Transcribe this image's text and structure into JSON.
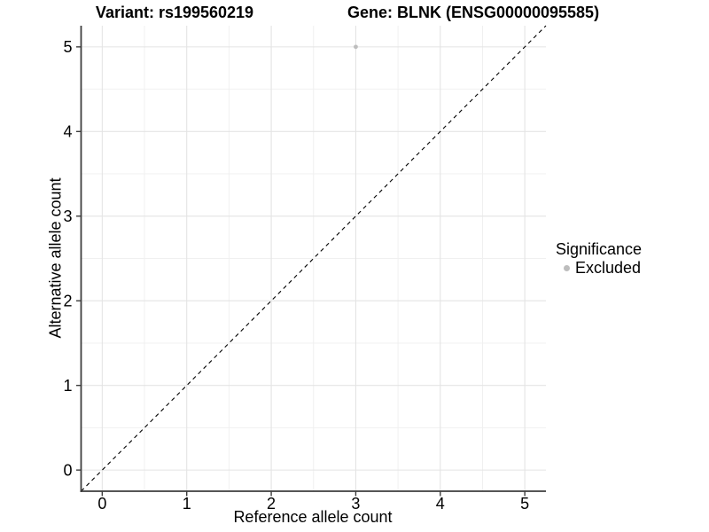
{
  "titles": {
    "variant": "Variant: rs199560219",
    "gene": "Gene: BLNK (ENSG00000095585)"
  },
  "axes": {
    "x_label": "Reference allele count",
    "y_label": "Alternative allele count"
  },
  "legend": {
    "title": "Significance",
    "items": [
      {
        "label": "Excluded",
        "color": "#bdbdbd"
      }
    ]
  },
  "colors": {
    "background": "#ffffff",
    "grid_major": "#e4e4e4",
    "grid_minor": "#f0f0f0",
    "axis_line": "#3d3d3d",
    "tick_mark": "#3d3d3d",
    "text": "#000000",
    "excluded_point": "#bdbdbd",
    "identity_line": "#000000"
  },
  "chart_data": {
    "type": "scatter",
    "title": "Variant: rs199560219    Gene: BLNK (ENSG00000095585)",
    "xlabel": "Reference allele count",
    "ylabel": "Alternative allele count",
    "xlim": [
      -0.25,
      5.25
    ],
    "ylim": [
      -0.25,
      5.25
    ],
    "x_ticks": [
      0,
      1,
      2,
      3,
      4,
      5
    ],
    "y_ticks": [
      0,
      1,
      2,
      3,
      4,
      5
    ],
    "grid": "major+minor",
    "legend_position": "right",
    "legend_title": "Significance",
    "series": [
      {
        "name": "Excluded",
        "color": "#bdbdbd",
        "points": [
          {
            "x": 3,
            "y": 5
          }
        ]
      }
    ],
    "reference_line": {
      "type": "identity",
      "slope": 1,
      "intercept": 0,
      "style": "dashed",
      "color": "#000000"
    }
  }
}
